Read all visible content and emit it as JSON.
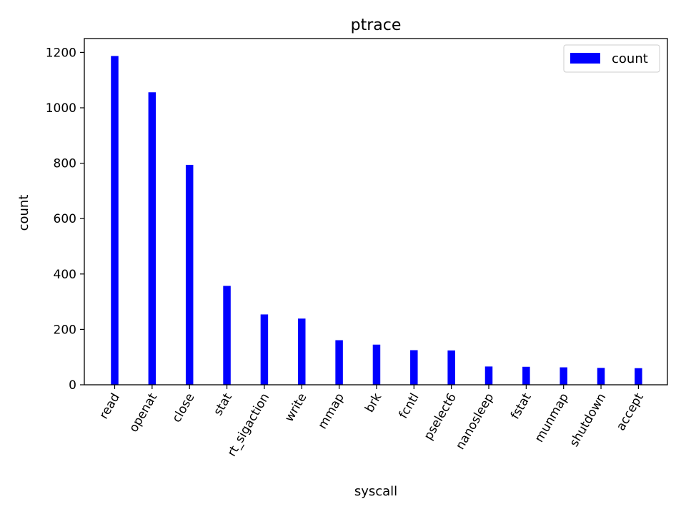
{
  "chart_data": {
    "type": "bar",
    "title": "ptrace",
    "xlabel": "syscall",
    "ylabel": "count",
    "categories": [
      "read",
      "openat",
      "close",
      "stat",
      "rt_sigaction",
      "write",
      "mmap",
      "brk",
      "fcntl",
      "pselect6",
      "nanosleep",
      "fstat",
      "munmap",
      "shutdown",
      "accept"
    ],
    "series": [
      {
        "name": "count",
        "color": "#0000ff",
        "values": [
          1187,
          1056,
          794,
          357,
          254,
          239,
          161,
          145,
          125,
          124,
          66,
          65,
          63,
          61,
          60
        ]
      }
    ],
    "ylim": [
      0,
      1250
    ],
    "yticks": [
      0,
      200,
      400,
      600,
      800,
      1000,
      1200
    ],
    "legend": {
      "position": "top-right",
      "entries": [
        "count"
      ]
    },
    "grid": false
  }
}
